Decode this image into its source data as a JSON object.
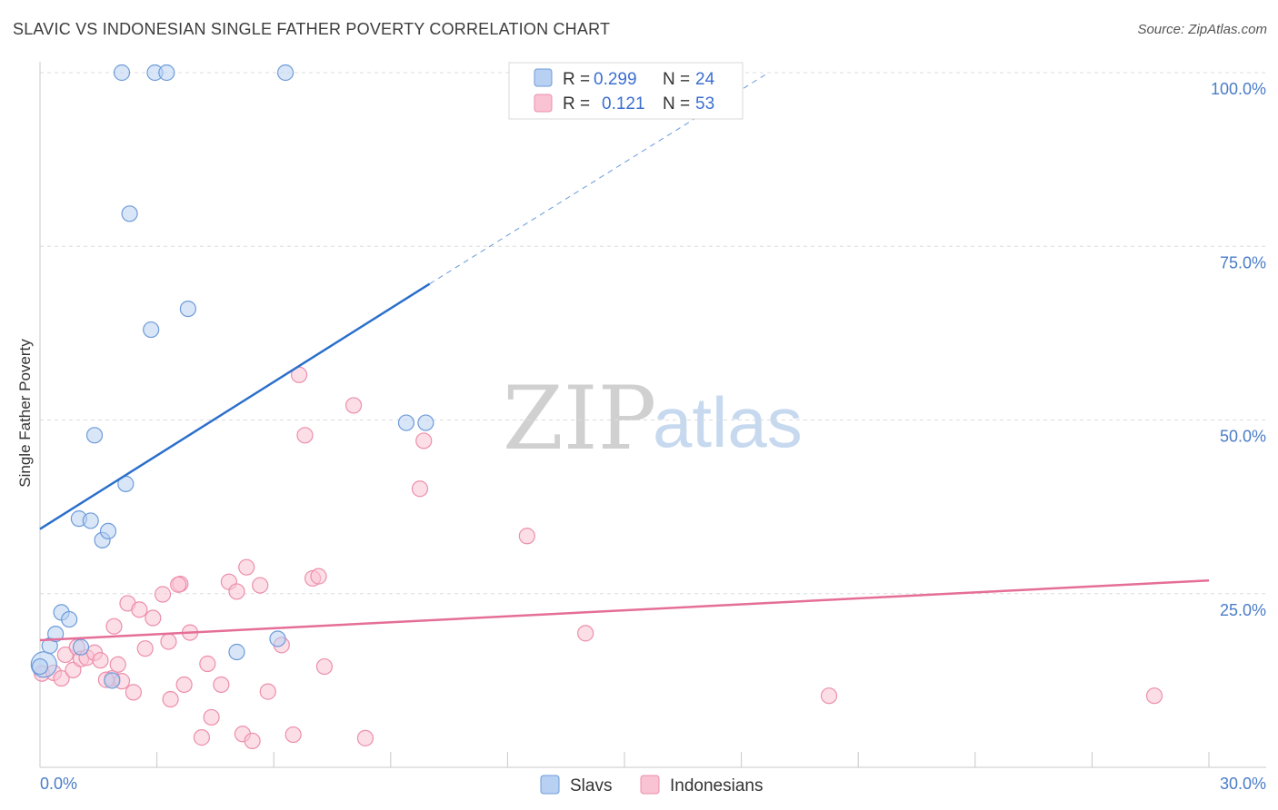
{
  "header": {
    "title": "SLAVIC VS INDONESIAN SINGLE FATHER POVERTY CORRELATION CHART",
    "source": "Source: ZipAtlas.com"
  },
  "watermark": {
    "zip": "ZIP",
    "atlas": "atlas"
  },
  "colors": {
    "slavs_fill": "#b8d1f2",
    "slavs_stroke": "#6e9bd9",
    "slavs_line": "#2a6fcc",
    "indo_fill": "#f9c3d4",
    "indo_stroke": "#ec8fab",
    "indo_line": "#e56e97",
    "tick_text": "#4a7cc8"
  },
  "legend": {
    "rows": [
      {
        "r_label": "R =",
        "r_value": "0.299",
        "n_label": "N =",
        "n_value": "24"
      },
      {
        "r_label": "R =",
        "r_value": "0.121",
        "n_label": "N =",
        "n_value": "53"
      }
    ]
  },
  "chart_data": {
    "type": "scatter",
    "title": "SLAVIC VS INDONESIAN SINGLE FATHER POVERTY CORRELATION CHART",
    "xlabel": "",
    "ylabel": "Single Father Poverty",
    "xlim": [
      0,
      30
    ],
    "ylim": [
      0,
      100
    ],
    "x_tick_labels": [
      "0.0%",
      "30.0%"
    ],
    "y_tick_values": [
      25,
      50,
      75,
      100
    ],
    "y_tick_labels": [
      "25.0%",
      "50.0%",
      "75.0%",
      "100.0%"
    ],
    "grid": true,
    "legend_position": "bottom",
    "series": [
      {
        "name": "Slavs",
        "r": 0.299,
        "n": 24,
        "trend": {
          "x0": 0,
          "y0": 34.3,
          "x1": 10,
          "y1": 69.6,
          "dashed_to_x": 18.7,
          "dashed_to_y": 100
        },
        "points": [
          [
            0.0,
            14.5
          ],
          [
            0.25,
            17.5
          ],
          [
            0.4,
            19.2
          ],
          [
            0.55,
            22.3
          ],
          [
            0.75,
            21.3
          ],
          [
            1.05,
            17.3
          ],
          [
            1.85,
            12.5
          ],
          [
            6.1,
            18.5
          ],
          [
            5.05,
            16.6
          ],
          [
            1.0,
            35.8
          ],
          [
            1.3,
            35.5
          ],
          [
            1.6,
            32.7
          ],
          [
            1.75,
            34.0
          ],
          [
            2.2,
            40.8
          ],
          [
            1.4,
            47.8
          ],
          [
            2.85,
            63.0
          ],
          [
            3.8,
            66.0
          ],
          [
            2.3,
            79.7
          ],
          [
            2.1,
            100
          ],
          [
            2.95,
            100
          ],
          [
            3.25,
            100
          ],
          [
            6.3,
            100
          ],
          [
            9.4,
            49.6
          ],
          [
            9.9,
            49.6
          ]
        ]
      },
      {
        "name": "Indonesians",
        "r": 0.121,
        "n": 53,
        "trend": {
          "x0": 0,
          "y0": 18.3,
          "x1": 30,
          "y1": 26.9
        },
        "points": [
          [
            0.05,
            13.5
          ],
          [
            0.35,
            13.6
          ],
          [
            0.55,
            12.8
          ],
          [
            0.65,
            16.2
          ],
          [
            0.85,
            14.0
          ],
          [
            0.95,
            17.3
          ],
          [
            1.05,
            15.6
          ],
          [
            1.2,
            15.8
          ],
          [
            1.4,
            16.5
          ],
          [
            1.55,
            15.4
          ],
          [
            1.85,
            12.8
          ],
          [
            1.9,
            20.3
          ],
          [
            2.0,
            14.8
          ],
          [
            2.1,
            12.4
          ],
          [
            2.25,
            23.6
          ],
          [
            2.4,
            10.8
          ],
          [
            2.55,
            22.7
          ],
          [
            2.7,
            17.1
          ],
          [
            2.9,
            21.5
          ],
          [
            3.15,
            24.9
          ],
          [
            3.3,
            18.1
          ],
          [
            3.35,
            9.8
          ],
          [
            3.6,
            26.4
          ],
          [
            3.7,
            11.9
          ],
          [
            3.85,
            19.4
          ],
          [
            4.15,
            4.3
          ],
          [
            4.3,
            14.9
          ],
          [
            4.4,
            7.2
          ],
          [
            4.65,
            11.9
          ],
          [
            4.85,
            26.7
          ],
          [
            5.05,
            25.3
          ],
          [
            5.2,
            4.8
          ],
          [
            5.3,
            28.8
          ],
          [
            5.45,
            3.8
          ],
          [
            5.65,
            26.2
          ],
          [
            5.85,
            10.9
          ],
          [
            6.2,
            17.6
          ],
          [
            6.5,
            4.7
          ],
          [
            6.65,
            56.5
          ],
          [
            6.8,
            47.8
          ],
          [
            7.0,
            27.2
          ],
          [
            7.15,
            27.5
          ],
          [
            7.3,
            14.5
          ],
          [
            8.05,
            52.1
          ],
          [
            8.35,
            4.2
          ],
          [
            9.75,
            40.1
          ],
          [
            9.85,
            47.0
          ],
          [
            12.5,
            33.3
          ],
          [
            14.0,
            19.3
          ],
          [
            20.25,
            10.3
          ],
          [
            28.6,
            10.3
          ],
          [
            3.55,
            26.3
          ],
          [
            1.7,
            12.6
          ]
        ]
      }
    ]
  },
  "bottom_legend": {
    "items": [
      "Slavs",
      "Indonesians"
    ]
  }
}
